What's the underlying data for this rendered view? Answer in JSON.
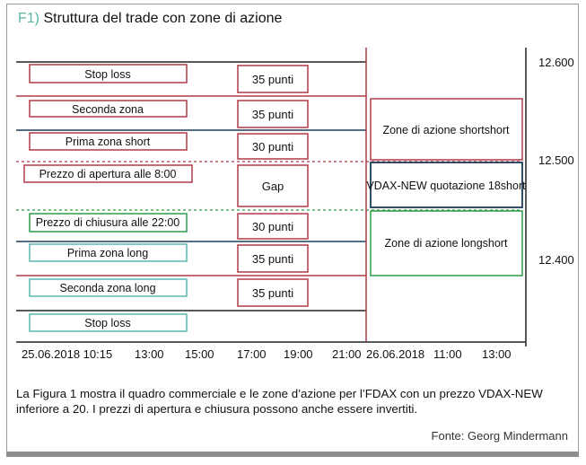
{
  "header": {
    "figure_number": "F1)",
    "title": "Struttura del trade con zone di azione"
  },
  "chart_data": {
    "type": "diagram",
    "y_axis": {
      "ticks": [
        "12.600",
        "12.500",
        "12.400"
      ]
    },
    "x_axis": {
      "ticks": [
        "25.06.2018 10:15",
        "13:00",
        "15:00",
        "17:00",
        "19:00",
        "21:00",
        "26.06.2018",
        "11:00",
        "13:00"
      ]
    },
    "zones": [
      {
        "label": "Stop loss",
        "points": "35 punti",
        "color": "#b03a48"
      },
      {
        "label": "Seconda zona",
        "points": "35 punti",
        "color": "#b03a48"
      },
      {
        "label": "Prima zona short",
        "points": "30 punti",
        "color": "#b03a48"
      },
      {
        "label": "Prezzo di apertura alle 8:00",
        "points": "Gap",
        "color": "#b03a48"
      },
      {
        "label": "Prezzo di chiusura alle 22:00",
        "points": "30 punti",
        "color": "#2e9b46"
      },
      {
        "label": "Prima zona long",
        "points": "35 punti",
        "color": "#5ab6b0"
      },
      {
        "label": "Seconda zona long",
        "points": "35 punti",
        "color": "#5ab6b0"
      },
      {
        "label": "Stop loss",
        "points": "",
        "color": "#5ab6b0"
      }
    ],
    "right_boxes": [
      {
        "label": "Zone di azione shortshort",
        "color": "#b03a48"
      },
      {
        "label": "VDAX-NEW quotazione 18short",
        "color": "#1f3b57"
      },
      {
        "label": "Zone di azione longshort",
        "color": "#2e9b46"
      }
    ]
  },
  "caption": "La Figura 1 mostra il quadro commerciale e le zone d’azione per l’FDAX con un prezzo VDAX-NEW inferiore a 20. I prezzi di apertura e chiusura possono anche essere invertiti.",
  "source": "Fonte: Georg Mindermann",
  "colors": {
    "short": "#b03a48",
    "open_close": "#2e9b46",
    "long": "#5ab6b0",
    "vdax": "#1f3b57",
    "navy_line": "#1f3b57"
  }
}
